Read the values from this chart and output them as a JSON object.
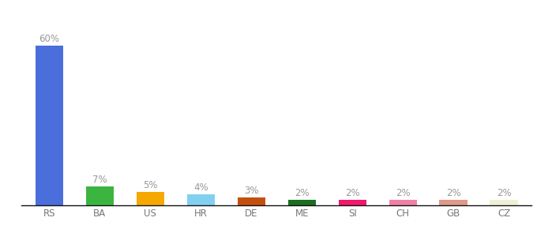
{
  "categories": [
    "RS",
    "BA",
    "US",
    "HR",
    "DE",
    "ME",
    "SI",
    "CH",
    "GB",
    "CZ"
  ],
  "values": [
    60,
    7,
    5,
    4,
    3,
    2,
    2,
    2,
    2,
    2
  ],
  "bar_colors": [
    "#4a6fdc",
    "#3cb540",
    "#f5a800",
    "#82d0f0",
    "#c45010",
    "#1a7020",
    "#f0186a",
    "#f080a8",
    "#e09888",
    "#f0f0d8"
  ],
  "labels": [
    "60%",
    "7%",
    "5%",
    "4%",
    "3%",
    "2%",
    "2%",
    "2%",
    "2%",
    "2%"
  ],
  "ylim": [
    0,
    70
  ],
  "background_color": "#ffffff",
  "label_fontsize": 8.5,
  "tick_fontsize": 8.5,
  "label_color": "#999999"
}
